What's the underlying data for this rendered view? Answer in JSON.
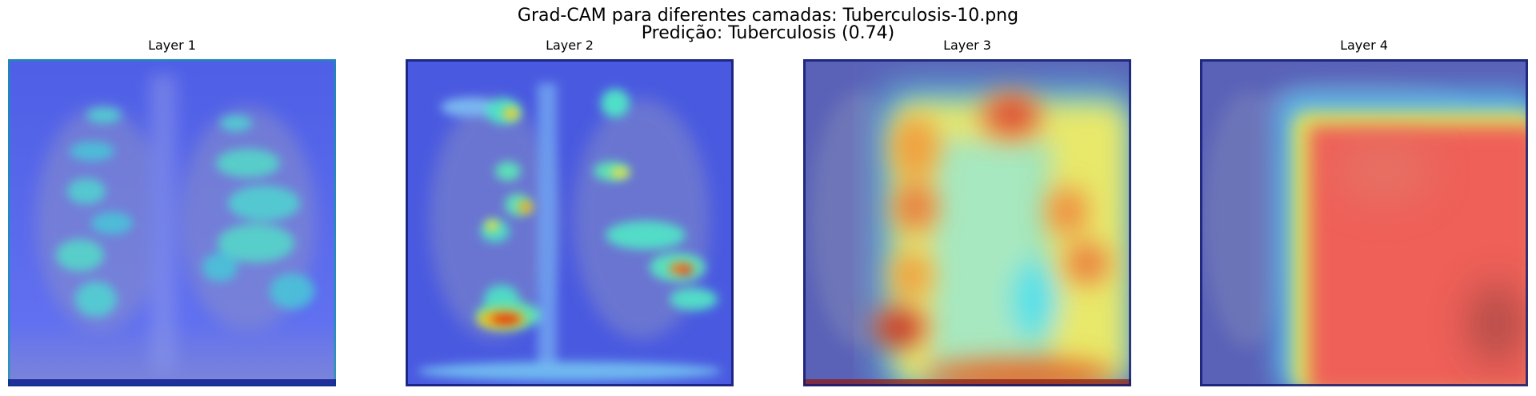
{
  "figure": {
    "title_line_1": "Grad-CAM para diferentes camadas: Tuberculosis-10.png",
    "title_line_2": "Predição: Tuberculosis (0.74)"
  },
  "panels": [
    {
      "title": "Layer 1",
      "heatmap_style": "low-activation-blue-cyan"
    },
    {
      "title": "Layer 2",
      "heatmap_style": "scattered-cyan-red-spots"
    },
    {
      "title": "Layer 3",
      "heatmap_style": "broad-yellow-red-central"
    },
    {
      "title": "Layer 4",
      "heatmap_style": "dominant-red-right-block"
    }
  ]
}
